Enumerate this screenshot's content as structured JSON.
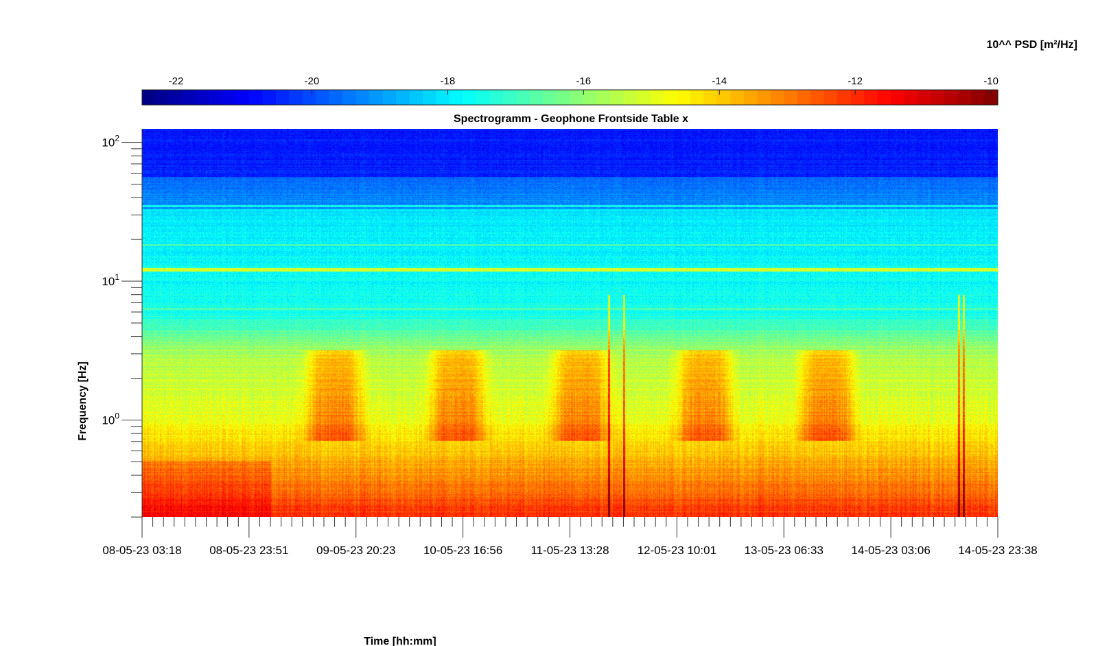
{
  "chart_data": {
    "type": "heatmap",
    "title": "Spectrogramm - Geophone Frontside Table x",
    "xlabel": "Time [hh:mm]",
    "ylabel": "Frequency [Hz]",
    "x_tick_labels": [
      "08-05-23 03:18",
      "08-05-23 23:51",
      "09-05-23 20:23",
      "10-05-23 16:56",
      "11-05-23 13:28",
      "12-05-23 10:01",
      "13-05-23 06:33",
      "14-05-23 03:06",
      "14-05-23 23:38"
    ],
    "y_scale": "log",
    "y_tick_labels": [
      {
        "base": "10",
        "exp": "0"
      },
      {
        "base": "10",
        "exp": "1"
      },
      {
        "base": "10",
        "exp": "2"
      }
    ],
    "ylim": [
      0.2,
      125
    ],
    "colorbar": {
      "label": "10^^ PSD [m²/Hz]",
      "ticks": [
        "-22",
        "-20",
        "-18",
        "-16",
        "-14",
        "-12",
        "-10"
      ],
      "range": [
        -22.5,
        -9.9
      ],
      "colormap": "jet",
      "position": "top"
    },
    "z_description": {
      "high_freq_level_approx": -20.5,
      "mid_freq_level_approx": -17.5,
      "line_12hz_level_approx": -15,
      "low_freq_level_approx": -11.5,
      "daytime_band_times": [
        "09-05-23",
        "10-05-23",
        "11-05-23",
        "12-05-23",
        "13-05-23"
      ]
    }
  }
}
